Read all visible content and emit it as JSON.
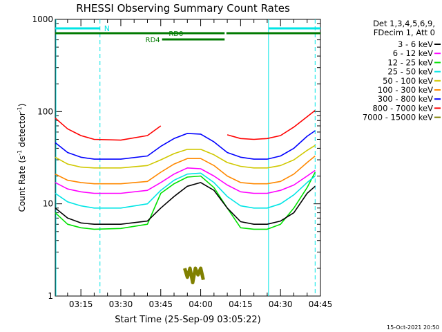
{
  "chart_data": {
    "type": "line",
    "title": "RHESSI Observing Summary Count Rates",
    "xlabel": "Start Time (25-Sep-09 03:05:22)",
    "ylabel_main": "Count Rate (s",
    "ylabel_sup1": "-1",
    "ylabel_mid": " detector",
    "ylabel_sup2": "-1",
    "ylabel_end": ")",
    "yscale": "log",
    "ylim": [
      1,
      1000
    ],
    "xlim": [
      "03:05:22",
      "04:45:00"
    ],
    "x_ticks": [
      "03:15",
      "03:30",
      "03:45",
      "04:00",
      "04:15",
      "04:30",
      "04:45"
    ],
    "y_ticks": [
      "1",
      "10",
      "100",
      "1000"
    ],
    "legend_header": [
      "Det 1,3,4,5,6,9,",
      "FDecim 1, Att 0"
    ],
    "footer_date": "15-Oct-2021 20:50",
    "annotations": {
      "night": "N",
      "rd0": "RD0",
      "rd4": "RD4",
      "night_color": "#00e5e5",
      "decimation_color": "#007a00"
    },
    "dashed_markers": [
      "03:22:10",
      "04:43:00"
    ],
    "solid_markers": [
      "04:25:30"
    ],
    "series": [
      {
        "name": "3 - 6 keV",
        "color": "#000000",
        "x": [
          "03:05:22",
          "03:10",
          "03:15",
          "03:20",
          "03:30",
          "03:40",
          "03:45",
          "03:50",
          "03:55",
          "04:00",
          "04:05",
          "04:10",
          "04:15",
          "04:20",
          "04:25",
          "04:30",
          "04:35",
          "04:40",
          "04:43"
        ],
        "y": [
          9,
          7,
          6.2,
          6,
          6,
          6.5,
          9,
          12,
          15.5,
          17,
          14,
          9,
          6.4,
          6,
          6,
          6.5,
          8,
          13,
          15.5
        ]
      },
      {
        "name": "6 - 12 keV",
        "color": "#ff00ff",
        "x": [
          "03:05:22",
          "03:10",
          "03:15",
          "03:20",
          "03:30",
          "03:40",
          "03:45",
          "03:50",
          "03:55",
          "04:00",
          "04:05",
          "04:10",
          "04:15",
          "04:20",
          "04:25",
          "04:30",
          "04:35",
          "04:40",
          "04:43"
        ],
        "y": [
          17,
          14.5,
          13.5,
          13,
          13,
          14,
          17,
          21,
          24.5,
          24,
          20,
          16,
          13.5,
          13,
          13,
          14,
          16,
          20,
          23
        ]
      },
      {
        "name": "12 - 25 keV",
        "color": "#00e000",
        "x": [
          "03:05:22",
          "03:10",
          "03:15",
          "03:20",
          "03:30",
          "03:40",
          "03:45",
          "03:50",
          "03:55",
          "04:00",
          "04:05",
          "04:10",
          "04:15",
          "04:20",
          "04:25",
          "04:30",
          "04:35",
          "04:40",
          "04:43"
        ],
        "y": [
          8,
          6,
          5.5,
          5.3,
          5.4,
          6,
          13,
          16.5,
          19.5,
          20,
          15,
          9,
          5.5,
          5.3,
          5.3,
          6,
          9,
          15,
          22
        ]
      },
      {
        "name": "25 - 50 keV",
        "color": "#00e5e5",
        "x": [
          "03:05:22",
          "03:10",
          "03:15",
          "03:20",
          "03:30",
          "03:40",
          "03:45",
          "03:50",
          "03:55",
          "04:00",
          "04:05",
          "04:10",
          "04:15",
          "04:20",
          "04:25",
          "04:30",
          "04:35",
          "04:40",
          "04:43"
        ],
        "y": [
          13,
          10.5,
          9.5,
          9,
          9,
          10,
          14,
          18,
          21,
          21.5,
          17,
          12,
          9.5,
          9,
          9,
          10,
          12.5,
          17,
          20
        ]
      },
      {
        "name": "50 - 100 keV",
        "color": "#d0c800",
        "x": [
          "03:05:22",
          "03:10",
          "03:15",
          "03:20",
          "03:30",
          "03:40",
          "03:45",
          "03:50",
          "03:55",
          "04:00",
          "04:05",
          "04:10",
          "04:15",
          "04:20",
          "04:25",
          "04:30",
          "04:35",
          "04:40",
          "04:43"
        ],
        "y": [
          32,
          27,
          25,
          24.5,
          24.5,
          26,
          30,
          35,
          39,
          39,
          34,
          28,
          25.5,
          24.5,
          24.5,
          26,
          30,
          38,
          43
        ]
      },
      {
        "name": "100 - 300 keV",
        "color": "#ff8800",
        "x": [
          "03:05:22",
          "03:10",
          "03:15",
          "03:20",
          "03:30",
          "03:40",
          "03:45",
          "03:50",
          "03:55",
          "04:00",
          "04:05",
          "04:10",
          "04:15",
          "04:20",
          "04:25",
          "04:30",
          "04:35",
          "04:40",
          "04:43"
        ],
        "y": [
          21,
          18,
          17,
          16.5,
          16.5,
          17.5,
          22,
          27,
          31,
          31,
          26,
          20,
          17,
          16.5,
          16.5,
          17.5,
          21,
          28,
          33
        ]
      },
      {
        "name": "300 - 800 keV",
        "color": "#0000ff",
        "x": [
          "03:05:22",
          "03:10",
          "03:15",
          "03:20",
          "03:30",
          "03:40",
          "03:45",
          "03:50",
          "03:55",
          "04:00",
          "04:05",
          "04:10",
          "04:15",
          "04:20",
          "04:25",
          "04:30",
          "04:35",
          "04:40",
          "04:43"
        ],
        "y": [
          46,
          36,
          32,
          30.5,
          30.5,
          33,
          42,
          51,
          58,
          57,
          47,
          36,
          32,
          30.5,
          30.5,
          33,
          40,
          54,
          62
        ]
      },
      {
        "name": "800 - 7000 keV",
        "color": "#ff0000",
        "x": [
          "03:05:22",
          "03:10",
          "03:15",
          "03:20",
          "03:30",
          "03:40",
          "03:45",
          "03:50",
          "04:09",
          "04:10",
          "04:15",
          "04:20",
          "04:25",
          "04:30",
          "04:35",
          "04:40",
          "04:43"
        ],
        "y": [
          85,
          65,
          55,
          50,
          49,
          55,
          70,
          null,
          null,
          56,
          51,
          50,
          51,
          55,
          68,
          88,
          103
        ]
      },
      {
        "name": "7000 - 15000 keV",
        "color": "#808000",
        "x": [
          "03:54",
          "03:55",
          "03:56",
          "03:57",
          "03:58",
          "03:59",
          "04:00",
          "04:01"
        ],
        "y": [
          2,
          1.6,
          2,
          1.4,
          2,
          1.7,
          2,
          1.5
        ]
      }
    ]
  }
}
